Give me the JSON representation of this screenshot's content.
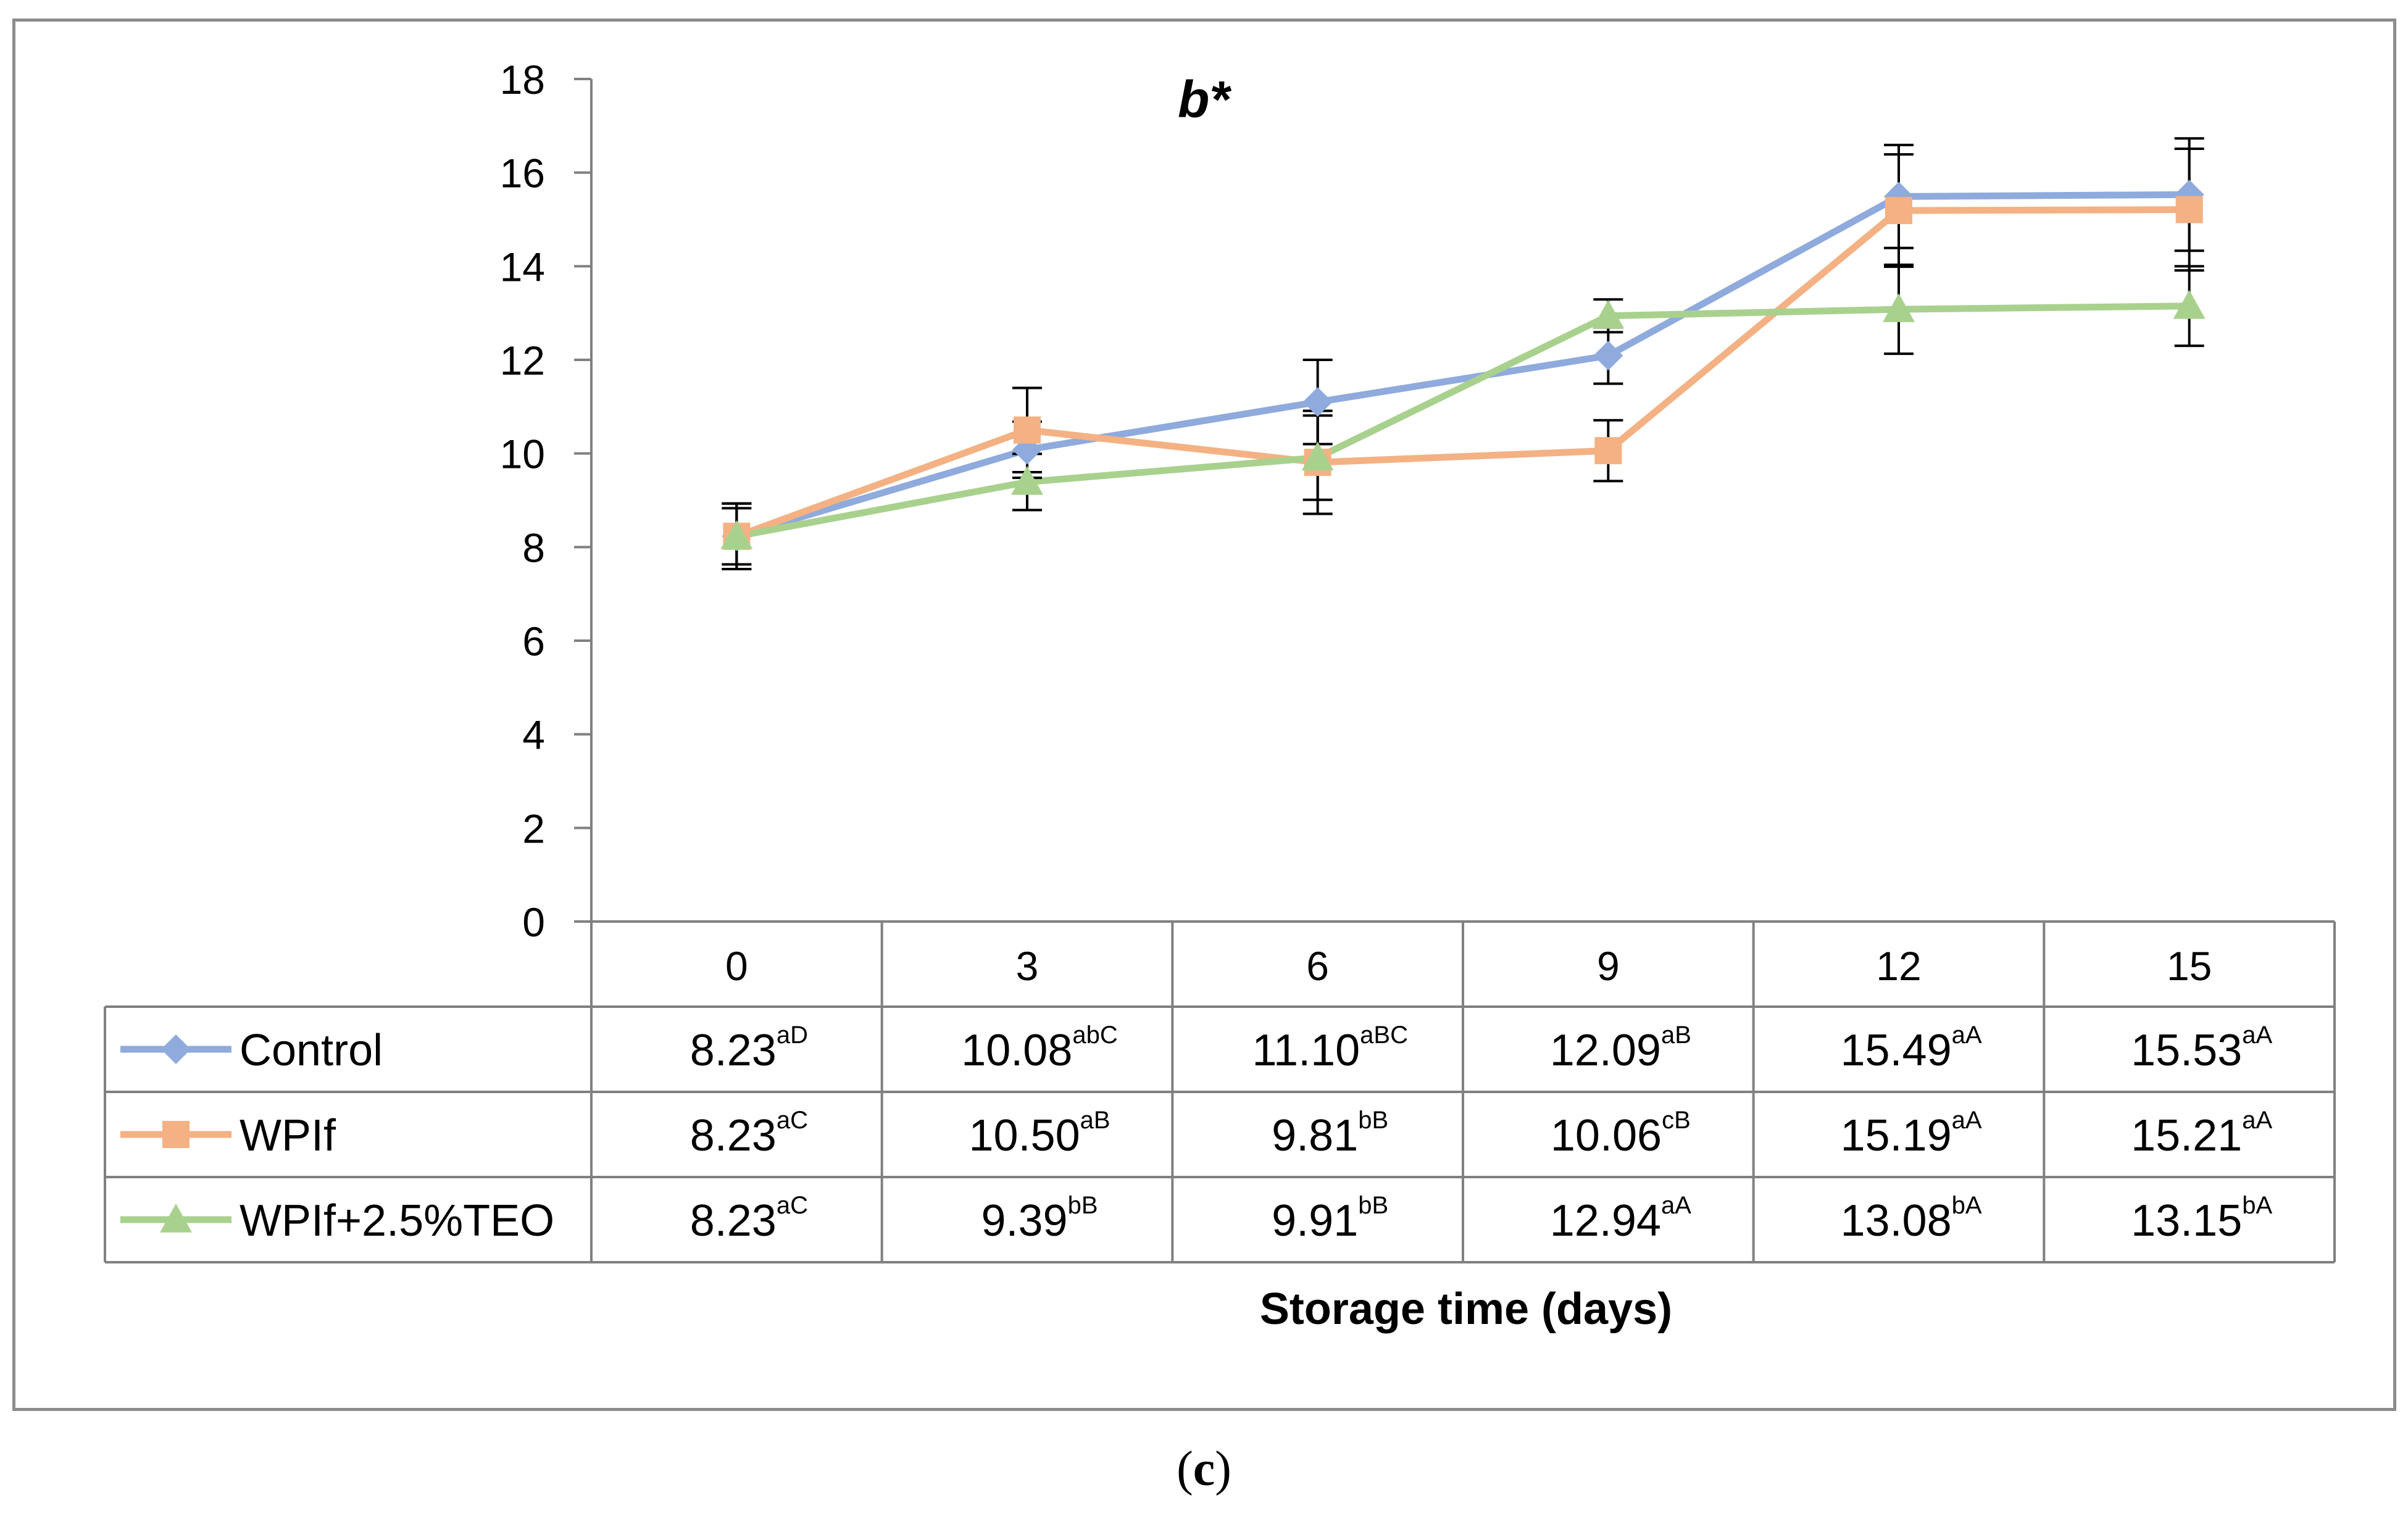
{
  "chart_data": {
    "type": "line",
    "title": "b*",
    "xlabel": "Storage time (days)",
    "ylabel": "",
    "categories": [
      "0",
      "3",
      "6",
      "9",
      "12",
      "15"
    ],
    "ylim": [
      0,
      18
    ],
    "yticks": [
      0,
      2,
      4,
      6,
      8,
      10,
      12,
      14,
      16,
      18
    ],
    "legend_placement": "data-table-below",
    "series": [
      {
        "name": "Control",
        "color": "#8faadc",
        "marker": "diamond",
        "values": [
          8.23,
          10.08,
          11.1,
          12.09,
          15.49,
          15.53
        ],
        "errors": [
          0.7,
          0.6,
          0.9,
          0.6,
          1.1,
          1.2
        ],
        "labels": [
          "8.23",
          "10.08",
          "11.10",
          "12.09",
          "15.49",
          "15.53"
        ],
        "superscripts": [
          "aD",
          "abC",
          "aBC",
          "aB",
          "aA",
          "aA"
        ]
      },
      {
        "name": "WPIf",
        "color": "#f4b183",
        "marker": "square",
        "values": [
          8.23,
          10.5,
          9.81,
          10.06,
          15.19,
          15.21
        ],
        "errors": [
          0.6,
          0.9,
          1.1,
          0.65,
          1.2,
          1.3
        ],
        "labels": [
          "8.23",
          "10.50",
          "9.81",
          "10.06",
          "15.19",
          "15.21"
        ],
        "superscripts": [
          "aC",
          "aB",
          "bB",
          "cB",
          "aA",
          "aA"
        ]
      },
      {
        "name": "WPIf+2.5%TEO",
        "color": "#a9d18e",
        "marker": "triangle",
        "values": [
          8.23,
          9.39,
          9.91,
          12.94,
          13.08,
          13.15
        ],
        "errors": [
          0.7,
          0.6,
          0.9,
          0.35,
          0.95,
          0.85
        ],
        "labels": [
          "8.23",
          "9.39",
          "9.91",
          "12.94",
          "13.08",
          "13.15"
        ],
        "superscripts": [
          "aC",
          "bB",
          "bB",
          "aA",
          "bA",
          "bA"
        ]
      }
    ]
  },
  "caption": {
    "open": "(",
    "letter": "c",
    "close": ")"
  }
}
